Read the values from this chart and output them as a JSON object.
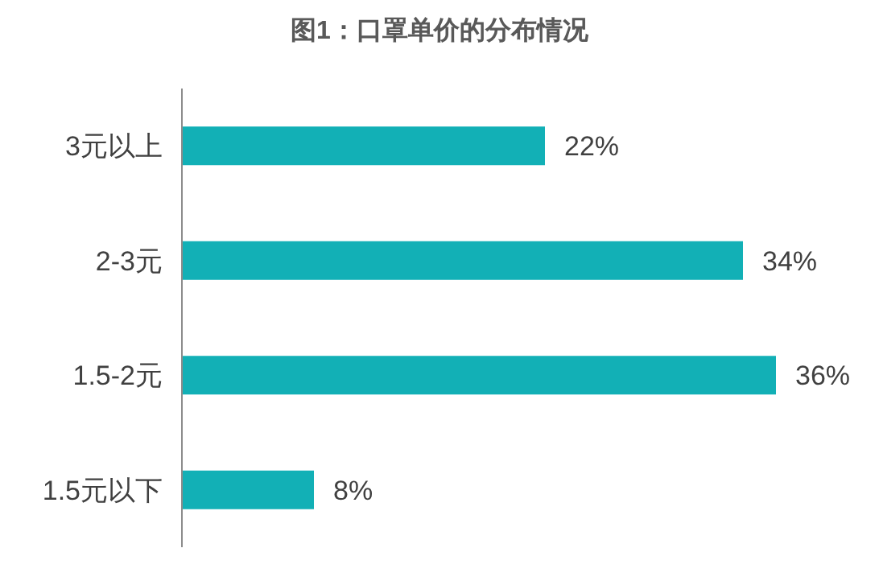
{
  "chart_data": {
    "type": "bar",
    "orientation": "horizontal",
    "title": "图1：口罩单价的分布情况",
    "categories": [
      "3元以上",
      "2-3元",
      "1.5-2元",
      "1.5元以下"
    ],
    "values": [
      22,
      34,
      36,
      8
    ],
    "value_labels": [
      "22%",
      "34%",
      "36%",
      "8%"
    ],
    "color": "#12b0b6"
  }
}
